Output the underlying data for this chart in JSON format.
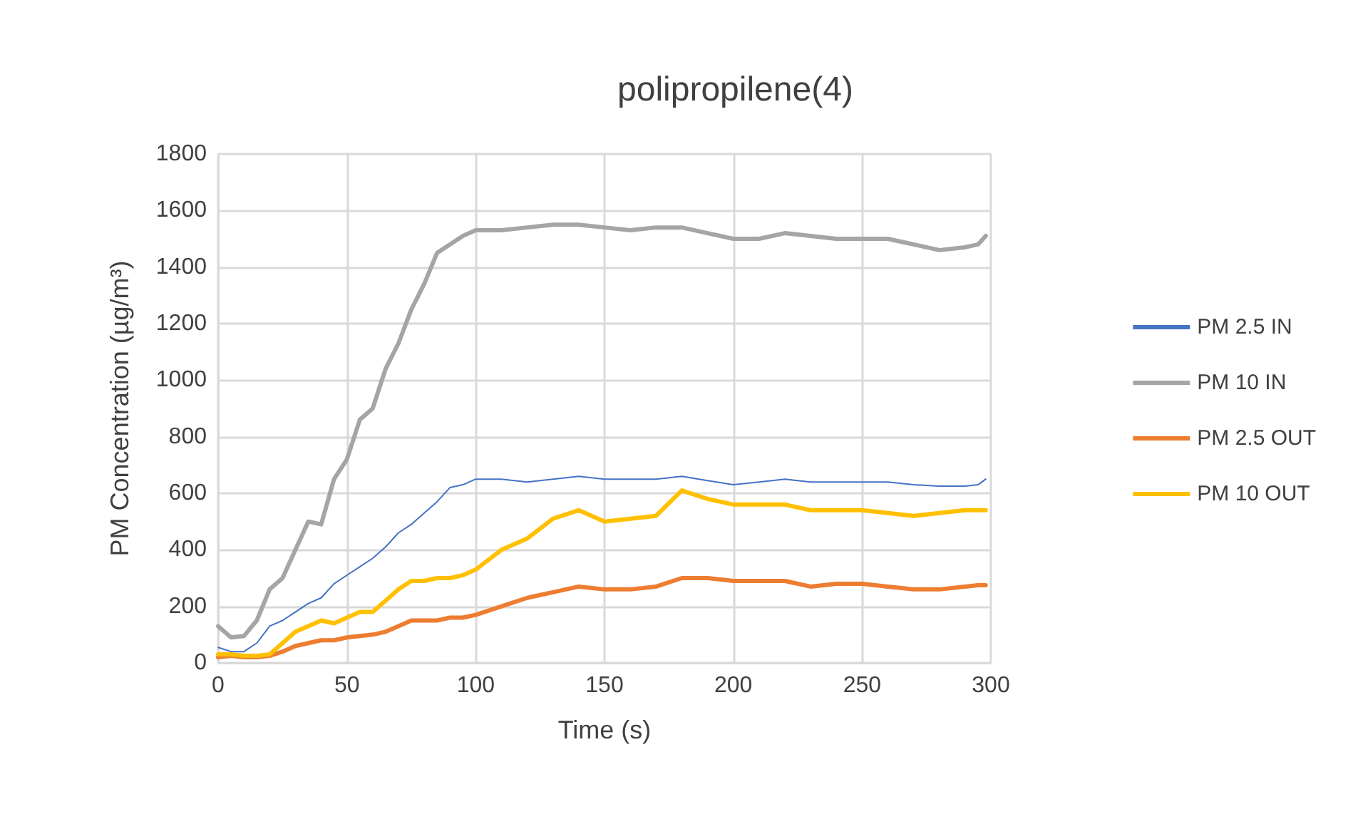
{
  "chart_data": {
    "type": "line",
    "title": "polipropilene(4)",
    "xlabel": "Time (s)",
    "ylabel": "PM Concentration (µg/m³)",
    "x": [
      0,
      5,
      10,
      15,
      20,
      25,
      30,
      35,
      40,
      45,
      50,
      55,
      60,
      65,
      70,
      75,
      80,
      85,
      90,
      95,
      100,
      110,
      120,
      130,
      140,
      150,
      160,
      170,
      180,
      190,
      200,
      210,
      220,
      230,
      240,
      250,
      260,
      270,
      280,
      290,
      295,
      298
    ],
    "series": [
      {
        "name": "PM 2.5 IN",
        "color": "#4472c4",
        "values": [
          55,
          40,
          40,
          70,
          130,
          150,
          180,
          210,
          230,
          280,
          310,
          340,
          370,
          410,
          460,
          490,
          530,
          570,
          620,
          630,
          650,
          650,
          640,
          650,
          660,
          650,
          650,
          650,
          660,
          645,
          630,
          640,
          650,
          640,
          640,
          640,
          640,
          630,
          625,
          625,
          630,
          650
        ]
      },
      {
        "name": "PM 10 IN",
        "color": "#a5a5a5",
        "values": [
          130,
          90,
          95,
          150,
          260,
          300,
          400,
          500,
          490,
          650,
          720,
          860,
          900,
          1040,
          1130,
          1250,
          1340,
          1450,
          1480,
          1510,
          1530,
          1530,
          1540,
          1550,
          1550,
          1540,
          1530,
          1540,
          1540,
          1520,
          1500,
          1500,
          1520,
          1510,
          1500,
          1500,
          1500,
          1480,
          1460,
          1470,
          1480,
          1510
        ]
      },
      {
        "name": "PM 2.5 OUT",
        "color": "#ed7d31",
        "values": [
          20,
          25,
          20,
          20,
          25,
          40,
          60,
          70,
          80,
          80,
          90,
          95,
          100,
          110,
          130,
          150,
          150,
          150,
          160,
          160,
          170,
          200,
          230,
          250,
          270,
          260,
          260,
          270,
          300,
          300,
          290,
          290,
          290,
          270,
          280,
          280,
          270,
          260,
          260,
          270,
          275,
          275
        ]
      },
      {
        "name": "PM 10 OUT",
        "color": "#ffc000",
        "values": [
          30,
          30,
          25,
          25,
          30,
          70,
          110,
          130,
          150,
          140,
          160,
          180,
          180,
          220,
          260,
          290,
          290,
          300,
          300,
          310,
          330,
          400,
          440,
          510,
          540,
          500,
          510,
          520,
          610,
          580,
          560,
          560,
          560,
          540,
          540,
          540,
          530,
          520,
          530,
          540,
          540,
          540
        ]
      }
    ],
    "xlim": [
      0,
      300
    ],
    "xticks": [
      0,
      50,
      100,
      150,
      200,
      250,
      300
    ],
    "ylim": [
      0,
      1800
    ],
    "yticks": [
      0,
      200,
      400,
      600,
      800,
      1000,
      1200,
      1400,
      1600,
      1800
    ],
    "grid": true,
    "legend": "right",
    "marker": "none",
    "line_style": "solid"
  }
}
